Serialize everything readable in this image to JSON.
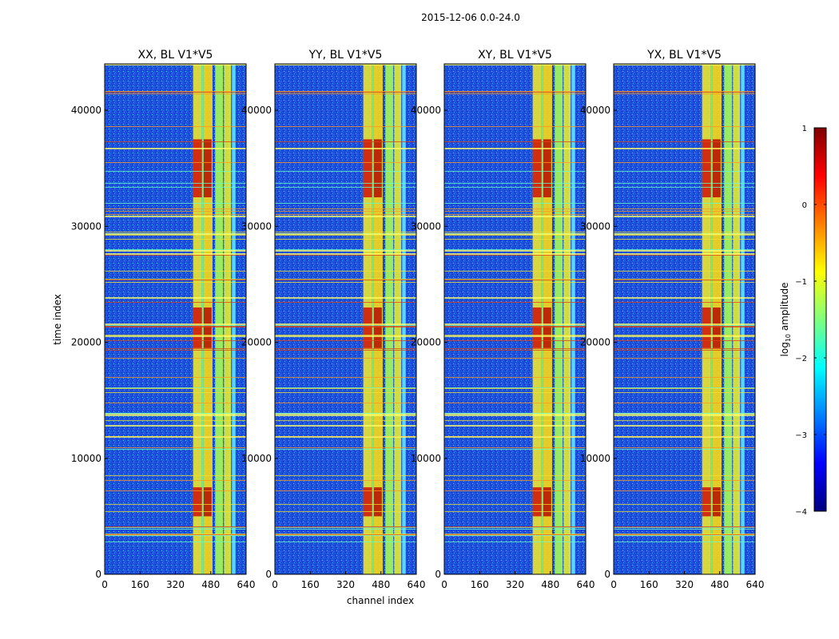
{
  "figure": {
    "suptitle": "2015-12-06 0.0-24.0"
  },
  "chart_data": {
    "type": "heatmap",
    "suptitle": "2015-12-06 0.0-24.0",
    "xlabel": "channel index",
    "ylabel": "time index",
    "xlim": [
      0,
      640
    ],
    "ylim": [
      0,
      44000
    ],
    "xticks": [
      0,
      160,
      320,
      480,
      640
    ],
    "yticks": [
      0,
      10000,
      20000,
      30000,
      40000
    ],
    "panels": [
      {
        "title": "XX, BL V1*V5",
        "product": "XX"
      },
      {
        "title": "YY, BL V1*V5",
        "product": "YY"
      },
      {
        "title": "XY, BL V1*V5",
        "product": "XY"
      },
      {
        "title": "YX, BL V1*V5",
        "product": "YX"
      }
    ],
    "colorbar": {
      "label": "log10 amplitude",
      "label_main": "log",
      "label_sub": "10",
      "label_tail": " amplitude",
      "range": [
        -4,
        1
      ],
      "ticks": [
        "1",
        "0",
        "−1",
        "−2",
        "−3",
        "−4"
      ],
      "colormap": "jet"
    },
    "rfi_channel_band": [
      400,
      600
    ],
    "strong_time_bands": [
      [
        5000,
        7500
      ],
      [
        19500,
        23000
      ],
      [
        32500,
        37500
      ]
    ]
  }
}
